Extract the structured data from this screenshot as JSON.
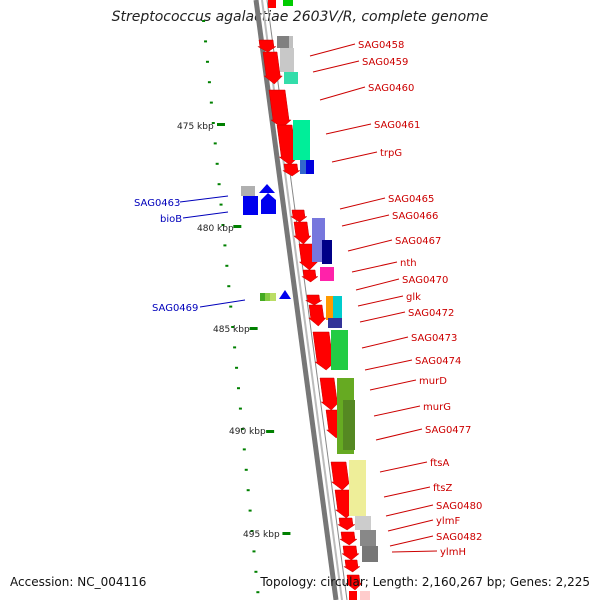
{
  "title": "Streptococcus agalactiae 2603V/R, complete genome",
  "footer": {
    "accession": "Accession: NC_004116",
    "topology": "Topology: circular; Length: 2,160,267 bp; Genes: 2,225"
  },
  "scale_labels": [
    "475 kbp",
    "480 kbp",
    "485 kbp",
    "490 kbp",
    "495 kbp"
  ],
  "gene_labels_right": [
    "SAG0458",
    "SAG0459",
    "SAG0460",
    "SAG0461",
    "trpG",
    "SAG0465",
    "SAG0466",
    "SAG0467",
    "nth",
    "SAG0470",
    "glk",
    "SAG0472",
    "SAG0473",
    "SAG0474",
    "murD",
    "murG",
    "SAG0477",
    "ftsA",
    "ftsZ",
    "SAG0480",
    "ylmF",
    "SAG0482",
    "ylmH"
  ],
  "gene_labels_left": [
    "SAG0463",
    "bioB",
    "SAG0469"
  ],
  "colors": {
    "forward_strand": "#ff0000",
    "reverse_strand": "#0000ee",
    "backbone": "#888888",
    "scale_tick": "#008000",
    "label_right": "#cc0000",
    "label_left": "#0000bb"
  }
}
